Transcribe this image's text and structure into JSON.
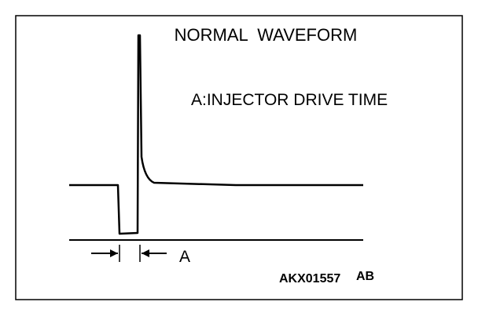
{
  "title": "NORMAL  WAVEFORM",
  "legend": "A:INJECTOR DRIVE TIME",
  "interval_label": "A",
  "figure_code": "AKX01557",
  "figure_suffix": "AB"
}
